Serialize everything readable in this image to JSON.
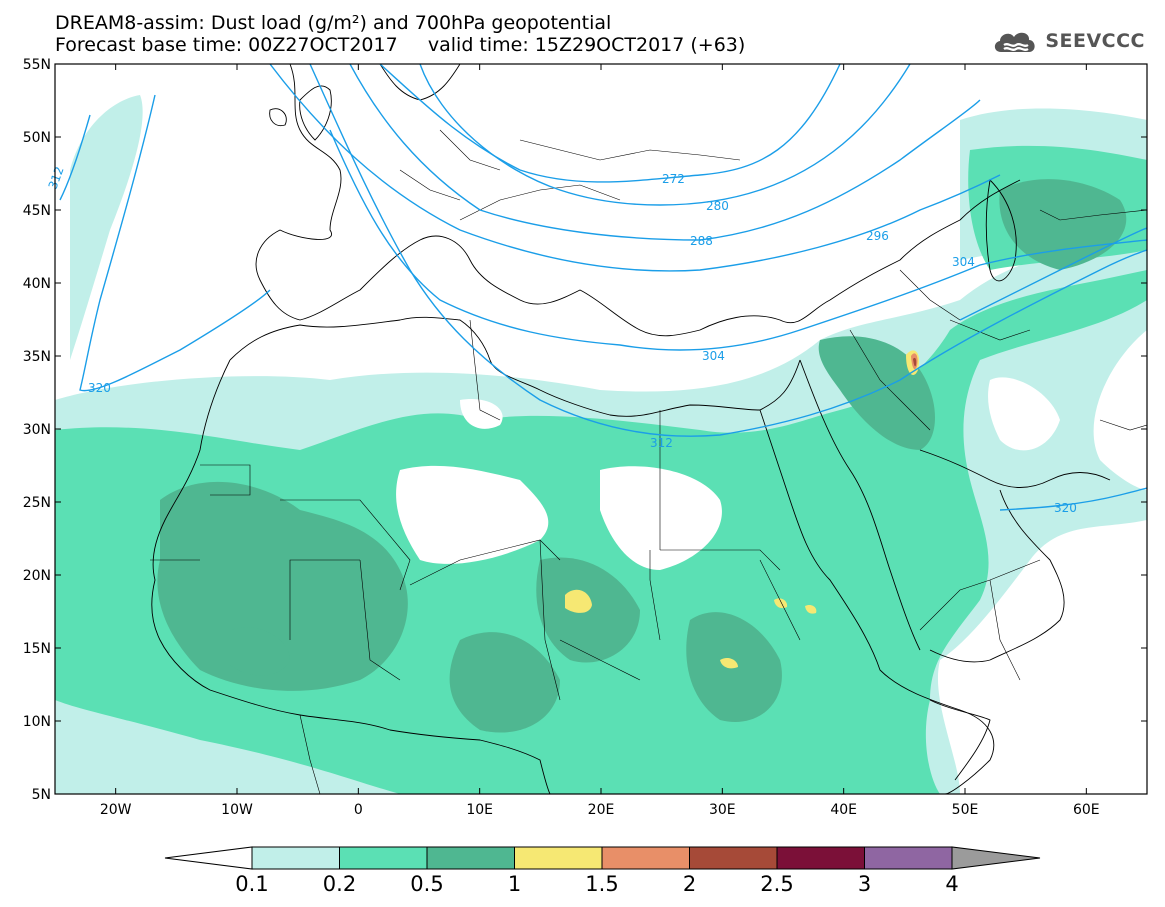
{
  "header": {
    "title_line1": "DREAM8-assim: Dust load (g/m²) and 700hPa geopotential",
    "title_line2": "Forecast base time: 00Z27OCT2017     valid time: 15Z29OCT2017 (+63)"
  },
  "logo": {
    "text": "SEEVCCC",
    "icon": "cloud-icon"
  },
  "map": {
    "lat_range": [
      5,
      55
    ],
    "lon_range": [
      -25,
      65
    ],
    "lat_labels": [
      "55N",
      "50N",
      "45N",
      "40N",
      "35N",
      "30N",
      "25N",
      "20N",
      "15N",
      "10N",
      "5N"
    ],
    "lon_labels": [
      "20W",
      "10W",
      "0",
      "10E",
      "20E",
      "30E",
      "40E",
      "50E",
      "60E"
    ],
    "contour_labels": [
      "272",
      "280",
      "288",
      "296",
      "304",
      "304",
      "312",
      "312",
      "320",
      "320"
    ],
    "colors": {
      "contour": "#1b9ee8",
      "land_line": "#000000",
      "background": "#ffffff"
    }
  },
  "colorbar": {
    "labels": [
      "0.1",
      "0.2",
      "0.5",
      "1",
      "1.5",
      "2",
      "2.5",
      "3",
      "4"
    ],
    "colors": [
      "#ffffff",
      "#c1efe9",
      "#5be0b4",
      "#4fb791",
      "#f6e873",
      "#e88f68",
      "#a64a38",
      "#7b1038",
      "#8f66a2",
      "#9b9b9b"
    ]
  }
}
